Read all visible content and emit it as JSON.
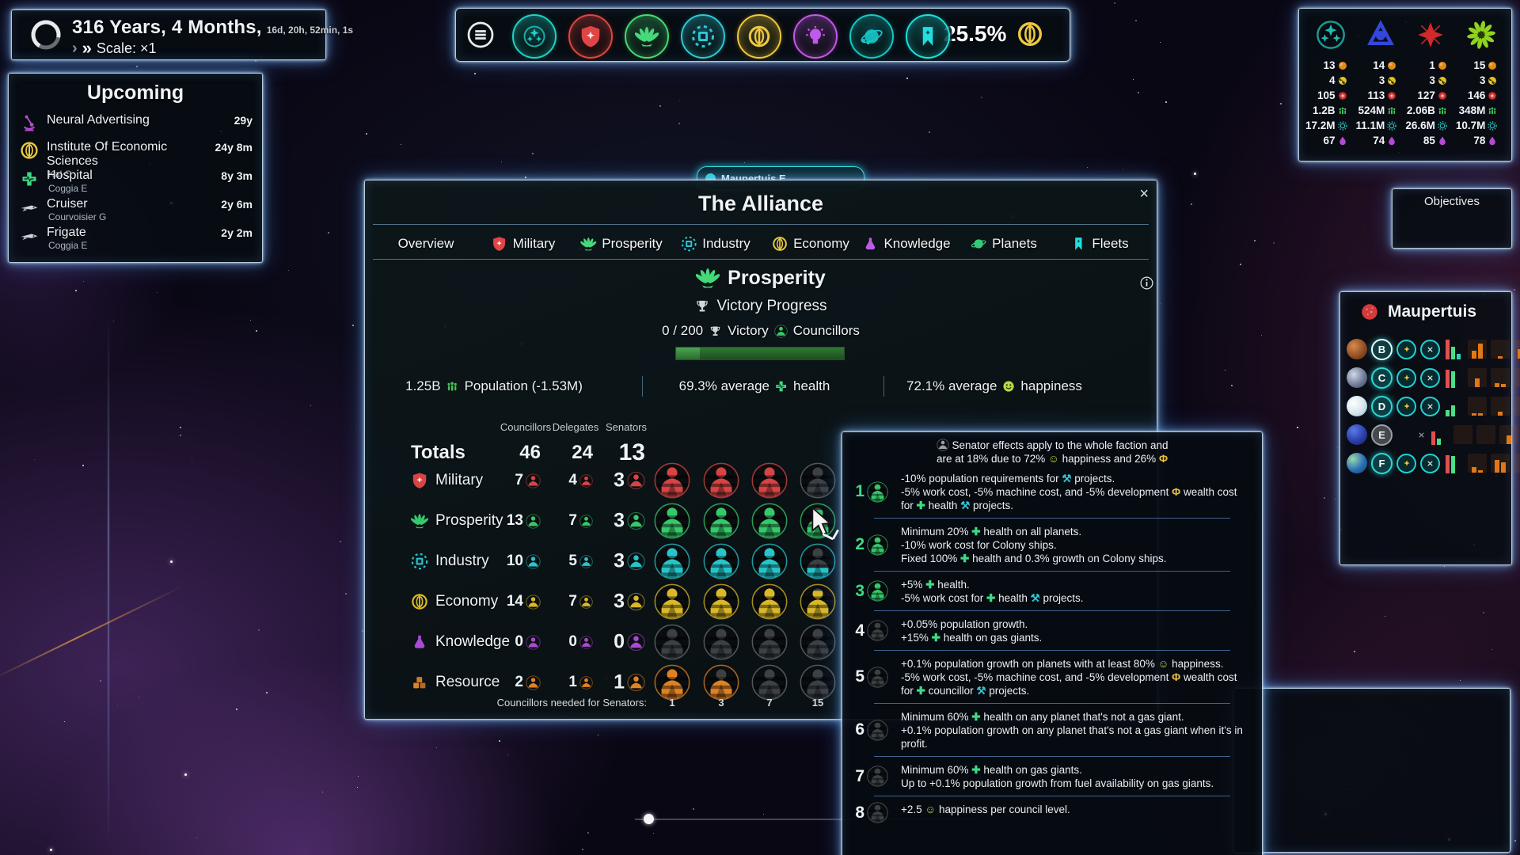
{
  "timer": {
    "duration": "316 Years, 4 Months,",
    "detail": "16d, 20h, 52min, 1s",
    "scale": "Scale: ×1",
    "chev1": "›",
    "chev2": "»"
  },
  "topbar": {
    "percent": "25.5%",
    "badges": [
      {
        "name": "alliance-badge",
        "icon": "stars",
        "color": "#1fd2c8"
      },
      {
        "name": "military-badge",
        "icon": "shield",
        "color": "#e04545"
      },
      {
        "name": "prosperity-badge",
        "icon": "fan",
        "color": "#46d97a"
      },
      {
        "name": "industry-badge",
        "icon": "chip",
        "color": "#2ec8d6"
      },
      {
        "name": "economy-badge",
        "icon": "coin",
        "color": "#ecc83f"
      },
      {
        "name": "knowledge-badge",
        "icon": "bulb",
        "color": "#c05ae8"
      },
      {
        "name": "planets-badge",
        "icon": "orbit",
        "color": "#17c6c6"
      },
      {
        "name": "fleets-badge",
        "icon": "bookmark",
        "color": "#1fe0e0"
      }
    ]
  },
  "resources": {
    "factions": [
      {
        "name": "faction-teal-emblem",
        "icon": "stars",
        "color": "#1bbfb4"
      },
      {
        "name": "faction-blue-emblem",
        "icon": "knot",
        "color": "#3347dd"
      },
      {
        "name": "faction-red-emblem",
        "icon": "burst",
        "color": "#d02a2a"
      },
      {
        "name": "faction-green-emblem",
        "icon": "swirl",
        "color": "#8fd41c"
      }
    ],
    "rows": [
      {
        "icon": "orb",
        "color": "#e08a1a",
        "values": [
          "13",
          "14",
          "1",
          "15"
        ]
      },
      {
        "icon": "credit",
        "color": "#e0c21a",
        "values": [
          "4",
          "3",
          "3",
          "3"
        ]
      },
      {
        "icon": "strength",
        "color": "#d03a3a",
        "values": [
          "105",
          "113",
          "127",
          "146"
        ]
      },
      {
        "icon": "pop",
        "color": "#43c554",
        "values": [
          "1.2B",
          "524M",
          "2.06B",
          "348M"
        ]
      },
      {
        "icon": "gearwork",
        "color": "#27b5ae",
        "values": [
          "17.2M",
          "11.1M",
          "26.6M",
          "10.7M"
        ]
      },
      {
        "icon": "science",
        "color": "#b44ad1",
        "values": [
          "67",
          "74",
          "85",
          "78"
        ]
      }
    ]
  },
  "upcoming": {
    "title": "Upcoming",
    "items": [
      {
        "icon": "microscope",
        "color": "#b44ad1",
        "name": "Neural Advertising",
        "sub": "",
        "time": "29y"
      },
      {
        "icon": "coin",
        "color": "#e8c83f",
        "name": "Institute Of Economic Sciences",
        "sub": "Kal C",
        "time": "24y 8m"
      },
      {
        "icon": "cross",
        "color": "#3ddc84",
        "name": "Hospital",
        "sub": "Coggia E",
        "time": "8y 3m"
      },
      {
        "icon": "ship",
        "color": "#cdd4da",
        "name": "Cruiser",
        "sub": "Courvoisier G",
        "time": "2y 6m"
      },
      {
        "icon": "ship",
        "color": "#cdd4da",
        "name": "Frigate",
        "sub": "Coggia E",
        "time": "2y 2m"
      }
    ]
  },
  "objectives": {
    "title": "Objectives"
  },
  "maup_label": {
    "text": "Maupertuis E"
  },
  "dialog": {
    "title": "The Alliance",
    "close": "×",
    "tabs": [
      {
        "label": "Overview",
        "icon": null,
        "color": null
      },
      {
        "label": "Military",
        "icon": "shield",
        "color": "#e04545"
      },
      {
        "label": "Prosperity",
        "icon": "fan",
        "color": "#46d97a"
      },
      {
        "label": "Industry",
        "icon": "chip",
        "color": "#2ec8d6"
      },
      {
        "label": "Economy",
        "icon": "coin",
        "color": "#ecc83f"
      },
      {
        "label": "Knowledge",
        "icon": "flask",
        "color": "#c05ae8"
      },
      {
        "label": "Planets",
        "icon": "planet",
        "color": "#35c97a"
      },
      {
        "label": "Fleets",
        "icon": "bookmark",
        "color": "#1fe0e0"
      }
    ],
    "section": {
      "title": "Prosperity",
      "progress_title": "Victory Progress",
      "victory_count": "0 / 200",
      "victory_label": "Victory",
      "councillors_label": "Councillors"
    },
    "stats": [
      {
        "pre": "1.25B",
        "icon": "pop",
        "color": "#43c554",
        "post": "Population (-1.53M)"
      },
      {
        "pre": "69.3% average",
        "icon": "cross",
        "color": "#3ddc84",
        "post": "health"
      },
      {
        "pre": "72.1% average",
        "icon": "happy",
        "color": "#b8d943",
        "post": "happiness"
      }
    ],
    "table": {
      "headers": [
        "Councillors",
        "Delegates",
        "Senators"
      ],
      "totals_label": "Totals",
      "totals": [
        "46",
        "24",
        "13"
      ],
      "rows": [
        {
          "label": "Military",
          "icon": "shield",
          "color": "#d84444",
          "councillors": "7",
          "delegates": "4",
          "senators": "3",
          "avatars": [
            1,
            1,
            1,
            0
          ]
        },
        {
          "label": "Prosperity",
          "icon": "fan",
          "color": "#35c96a",
          "councillors": "13",
          "delegates": "7",
          "senators": "3",
          "avatars": [
            1,
            1,
            1,
            0.8
          ]
        },
        {
          "label": "Industry",
          "icon": "chip",
          "color": "#27c5c9",
          "councillors": "10",
          "delegates": "5",
          "senators": "3",
          "avatars": [
            1,
            1,
            1,
            0.32
          ]
        },
        {
          "label": "Economy",
          "icon": "coin",
          "color": "#d9b82a",
          "councillors": "14",
          "delegates": "7",
          "senators": "3",
          "avatars": [
            1,
            1,
            1,
            0.8
          ]
        },
        {
          "label": "Knowledge",
          "icon": "flask",
          "color": "#a94ad1",
          "councillors": "0",
          "delegates": "0",
          "senators": "0",
          "avatars": [
            0,
            0,
            0,
            0
          ]
        },
        {
          "label": "Resource",
          "icon": "cubes",
          "color": "#e08224",
          "councillors": "2",
          "delegates": "1",
          "senators": "1",
          "avatars": [
            1,
            0.6,
            0,
            0
          ]
        }
      ],
      "footer_label": "Councillors needed for Senators:",
      "footer_values": [
        "1",
        "3",
        "7",
        "15"
      ]
    }
  },
  "tooltip": {
    "header_line1": "Senator effects apply to the whole faction and",
    "header_line2": "are at 18% due to 72% ☺ happiness and 26% Φ",
    "items": [
      {
        "num": "1",
        "num_color": "#3ddc84",
        "avatar": "#35c96a",
        "lines": [
          "-10% population requirements for ⚒ projects.",
          "-5% work cost, -5% machine cost, and -5% development Φ wealth cost for ✚ health ⚒ projects."
        ]
      },
      {
        "num": "2",
        "num_color": "#3ddc84",
        "avatar": "#35c96a",
        "lines": [
          "Minimum 20% ✚ health on all planets.",
          "-10% work cost for Colony ships.",
          "Fixed 100% ✚ health and 0.3% growth on Colony ships."
        ]
      },
      {
        "num": "3",
        "num_color": "#3ddc84",
        "avatar": "#35c96a",
        "lines": [
          "+5% ✚ health.",
          "-5% work cost for ✚ health ⚒ projects."
        ]
      },
      {
        "num": "4",
        "num_color": "#eef3f6",
        "avatar": "#9aa2a8",
        "lines": [
          "+0.05% population growth.",
          "+15% ✚ health on gas giants."
        ]
      },
      {
        "num": "5",
        "num_color": "#eef3f6",
        "avatar": "#9aa2a8",
        "lines": [
          "+0.1% population growth on planets with at least 80% ☺ happiness.",
          "-5% work cost, -5% machine cost, and -5% development Φ wealth cost for ✚ councillor ⚒ projects."
        ]
      },
      {
        "num": "6",
        "num_color": "#eef3f6",
        "avatar": "#9aa2a8",
        "lines": [
          "Minimum 60% ✚ health on any planet that's not a gas giant.",
          "+0.1% population growth on any planet that's not a gas giant when it's in profit."
        ]
      },
      {
        "num": "7",
        "num_color": "#eef3f6",
        "avatar": "#9aa2a8",
        "lines": [
          "Minimum 60% ✚ health on gas giants.",
          "Up to +0.1% population growth from fuel availability on gas giants."
        ]
      },
      {
        "num": "8",
        "num_color": "#eef3f6",
        "avatar": "#9aa2a8",
        "lines": [
          "+2.5 ☺ happiness per council level."
        ]
      }
    ]
  },
  "maupertuis": {
    "title": "Maupertuis",
    "rows": [
      {
        "letter": "B",
        "planet": "rust",
        "selected": true,
        "circles": true,
        "bars": [
          [
            "#e05050",
            0.95
          ],
          [
            "#49e085",
            0.6
          ],
          [
            "#35d0c0",
            0.28
          ]
        ],
        "orange": [
          [
            0.45,
            0.85
          ],
          [
            0.12
          ],
          [
            0.55,
            0.4
          ]
        ]
      },
      {
        "letter": "C",
        "planet": "rock",
        "selected": false,
        "circles": true,
        "bars": [
          [
            "#e05050",
            0.9
          ],
          [
            "#49e085",
            0.8
          ]
        ],
        "orange": [
          [
            0.5
          ],
          [
            0.22,
            0.2
          ],
          [
            0.45
          ]
        ]
      },
      {
        "letter": "D",
        "planet": "ice",
        "selected": false,
        "circles": true,
        "bars": [
          [
            "#49e085",
            0.3
          ],
          [
            "#49e085",
            0.55
          ]
        ],
        "orange": [
          [
            0.15,
            0.15
          ],
          [
            0.22
          ],
          [
            0.22
          ]
        ]
      },
      {
        "letter": "E",
        "planet": "gas",
        "selected": false,
        "circles": false,
        "bars": [
          [
            "#e05050",
            0.65
          ],
          [
            "#49e085",
            0.3
          ]
        ],
        "orange": [
          [],
          [],
          [
            0.5
          ]
        ]
      },
      {
        "letter": "F",
        "planet": "terra",
        "selected": false,
        "circles": true,
        "bars": [
          [
            "#e05050",
            0.9
          ],
          [
            "#49e085",
            0.85
          ]
        ],
        "orange": [
          [
            0.3,
            0.12
          ],
          [
            0.72,
            0.6
          ],
          [
            0.4
          ]
        ]
      }
    ]
  },
  "inline_icons": {
    "✚": {
      "name": "health-icon",
      "color": "#3ddc84"
    },
    "Φ": {
      "name": "wealth-icon",
      "color": "#e8c040"
    },
    "☺": {
      "name": "happiness-icon",
      "color": "#b8d943"
    },
    "⚒": {
      "name": "project-icon",
      "color": "#35c3d1"
    }
  }
}
